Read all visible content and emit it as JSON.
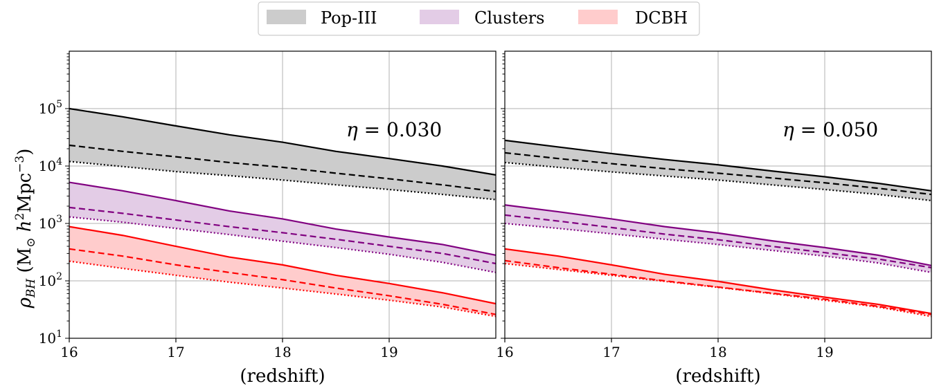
{
  "chart_data": {
    "type": "area",
    "legend": {
      "placement": "top-center",
      "entries": [
        {
          "label": "Pop-III",
          "color": "#cccccc"
        },
        {
          "label": "Clusters",
          "color": "#e3cce6"
        },
        {
          "label": "DCBH",
          "color": "#ffcccc"
        }
      ]
    },
    "shared_y_label": "ρ_BH (M⊙ h²Mpc⁻³)",
    "y_label_parts": {
      "main": "ρ",
      "sub": "BH",
      "open": " (M",
      "sun": "⊙",
      "h": " h",
      "h_sup": "2",
      "mpc": "Mpc",
      "mpc_sup": "−3",
      "close": ")"
    },
    "y_scale": "log",
    "y_tick_labels": [
      {
        "base": "10",
        "exp": "1"
      },
      {
        "base": "10",
        "exp": "2"
      },
      {
        "base": "10",
        "exp": "3"
      },
      {
        "base": "10",
        "exp": "4"
      },
      {
        "base": "10",
        "exp": "5"
      }
    ],
    "grid": true,
    "panels": [
      {
        "annotation": "η = 0.030",
        "annotation_parts": {
          "symbol": "η",
          "eq": " = ",
          "value": "0.030"
        },
        "xlabel": "(redshift)",
        "xlim": [
          16,
          20
        ],
        "ylim": [
          10,
          1000000
        ],
        "x_ticks": [
          "16",
          "17",
          "18",
          "19"
        ],
        "series": [
          {
            "name": "Pop-III",
            "color": "#000000",
            "fill": "#cccccc",
            "solid": {
              "x": [
                16,
                16.5,
                17,
                17.5,
                18,
                18.5,
                19,
                19.5,
                20
              ],
              "y": [
                100000,
                72000,
                50000,
                35000,
                26000,
                18000,
                13500,
                10000,
                7000
              ]
            },
            "dashed": {
              "x": [
                16,
                16.5,
                17,
                17.5,
                18,
                18.5,
                19,
                19.5,
                20
              ],
              "y": [
                23000,
                18000,
                14500,
                11500,
                9500,
                7500,
                6000,
                4700,
                3600
              ]
            },
            "dotted": {
              "x": [
                16,
                16.5,
                17,
                17.5,
                18,
                18.5,
                19,
                19.5,
                20
              ],
              "y": [
                12000,
                9800,
                8000,
                6800,
                5700,
                4700,
                3900,
                3200,
                2600
              ]
            }
          },
          {
            "name": "Clusters",
            "color": "#800080",
            "fill": "#e3cce6",
            "solid": {
              "x": [
                16,
                16.5,
                17,
                17.5,
                18,
                18.5,
                19,
                19.5,
                20
              ],
              "y": [
                5200,
                3700,
                2500,
                1650,
                1200,
                800,
                580,
                430,
                280
              ]
            },
            "dashed": {
              "x": [
                16,
                16.5,
                17,
                17.5,
                18,
                18.5,
                19,
                19.5,
                20
              ],
              "y": [
                1900,
                1500,
                1150,
                880,
                690,
                530,
                400,
                300,
                200
              ]
            },
            "dotted": {
              "x": [
                16,
                16.5,
                17,
                17.5,
                18,
                18.5,
                19,
                19.5,
                20
              ],
              "y": [
                1300,
                1050,
                820,
                640,
                490,
                380,
                290,
                210,
                140
              ]
            }
          },
          {
            "name": "DCBH",
            "color": "#ff0000",
            "fill": "#ffcccc",
            "solid": {
              "x": [
                16,
                16.5,
                17,
                17.5,
                18,
                18.5,
                19,
                19.5,
                20
              ],
              "y": [
                880,
                620,
                400,
                260,
                190,
                125,
                90,
                62,
                40
              ]
            },
            "dashed": {
              "x": [
                16,
                16.5,
                17,
                17.5,
                18,
                18.5,
                19,
                19.5,
                20
              ],
              "y": [
                360,
                270,
                190,
                140,
                105,
                75,
                55,
                39,
                26
              ]
            },
            "dotted": {
              "x": [
                16,
                16.5,
                17,
                17.5,
                18,
                18.5,
                19,
                19.5,
                20
              ],
              "y": [
                220,
                165,
                125,
                95,
                75,
                59,
                46,
                35,
                24
              ]
            }
          }
        ]
      },
      {
        "annotation": "η = 0.050",
        "annotation_parts": {
          "symbol": "η",
          "eq": " = ",
          "value": "0.050"
        },
        "xlabel": "(redshift)",
        "xlim": [
          16,
          20
        ],
        "ylim": [
          10,
          1000000
        ],
        "x_ticks": [
          "16",
          "17",
          "18",
          "19"
        ],
        "series": [
          {
            "name": "Pop-III",
            "color": "#000000",
            "fill": "#cccccc",
            "solid": {
              "x": [
                16,
                16.5,
                17,
                17.5,
                18,
                18.5,
                19,
                19.5,
                20
              ],
              "y": [
                28000,
                21500,
                16500,
                13000,
                10500,
                8200,
                6500,
                5000,
                3700
              ]
            },
            "dashed": {
              "x": [
                16,
                16.5,
                17,
                17.5,
                18,
                18.5,
                19,
                19.5,
                20
              ],
              "y": [
                17000,
                13500,
                11000,
                9000,
                7500,
                6200,
                5100,
                4100,
                3200
              ]
            },
            "dotted": {
              "x": [
                16,
                16.5,
                17,
                17.5,
                18,
                18.5,
                19,
                19.5,
                20
              ],
              "y": [
                11500,
                9500,
                7900,
                6700,
                5700,
                4700,
                3900,
                3200,
                2500
              ]
            }
          },
          {
            "name": "Clusters",
            "color": "#800080",
            "fill": "#e3cce6",
            "solid": {
              "x": [
                16,
                16.5,
                17,
                17.5,
                18,
                18.5,
                19,
                19.5,
                20
              ],
              "y": [
                2100,
                1600,
                1200,
                880,
                680,
                500,
                380,
                280,
                185
              ]
            },
            "dashed": {
              "x": [
                16,
                16.5,
                17,
                17.5,
                18,
                18.5,
                19,
                19.5,
                20
              ],
              "y": [
                1400,
                1100,
                850,
                650,
                520,
                400,
                310,
                240,
                170
              ]
            },
            "dotted": {
              "x": [
                16,
                16.5,
                17,
                17.5,
                18,
                18.5,
                19,
                19.5,
                20
              ],
              "y": [
                1000,
                820,
                660,
                530,
                430,
                340,
                270,
                205,
                140
              ]
            }
          },
          {
            "name": "DCBH",
            "color": "#ff0000",
            "fill": "#ffcccc",
            "solid": {
              "x": [
                16,
                16.5,
                17,
                17.5,
                18,
                18.5,
                19,
                19.5,
                20
              ],
              "y": [
                360,
                270,
                190,
                130,
                98,
                70,
                52,
                39,
                27
              ]
            },
            "dashed": {
              "x": [
                16,
                16.5,
                17,
                17.5,
                18,
                18.5,
                19,
                19.5,
                20
              ],
              "y": [
                225,
                170,
                130,
                100,
                78,
                61,
                48,
                36,
                26
              ]
            },
            "dotted": {
              "x": [
                16,
                16.5,
                17,
                17.5,
                18,
                18.5,
                19,
                19.5,
                20
              ],
              "y": [
                200,
                158,
                125,
                98,
                77,
                60,
                46,
                35,
                24
              ]
            }
          }
        ]
      }
    ]
  }
}
